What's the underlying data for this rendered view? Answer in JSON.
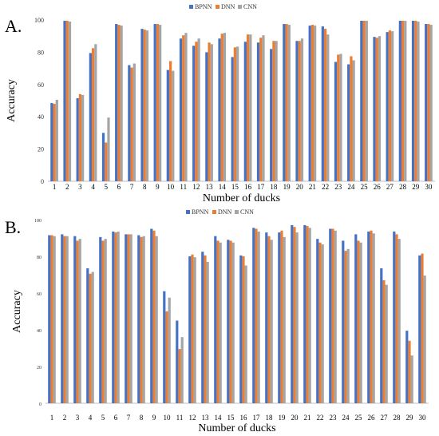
{
  "colors": {
    "BPNN": "#4472C4",
    "DNN": "#ED7D31",
    "CNN": "#A5A5A5"
  },
  "chart_data": [
    {
      "panel_label": "A.",
      "type": "bar",
      "xlabel": "Number of ducks",
      "ylabel": "Accuracy",
      "ylim": [
        0,
        100
      ],
      "yticks": [
        0,
        20,
        40,
        60,
        80,
        100
      ],
      "grid": false,
      "legend": "top-center",
      "categories": [
        "1",
        "2",
        "3",
        "4",
        "5",
        "6",
        "7",
        "8",
        "9",
        "10",
        "11",
        "12",
        "13",
        "14",
        "15",
        "16",
        "17",
        "18",
        "19",
        "20",
        "21",
        "22",
        "23",
        "24",
        "25",
        "26",
        "27",
        "28",
        "29",
        "30"
      ],
      "series": [
        {
          "name": "BPNN",
          "values": [
            48.5,
            99.5,
            51.5,
            79.5,
            30,
            97.5,
            72,
            94.5,
            97.5,
            69,
            88.5,
            84,
            80,
            88.5,
            77,
            86.5,
            86,
            82,
            97.5,
            87,
            96.5,
            96,
            74,
            72.5,
            99.5,
            89.5,
            92.5,
            99.5,
            99.5,
            97.5
          ]
        },
        {
          "name": "DNN",
          "values": [
            48,
            99.5,
            54,
            82.5,
            24,
            97,
            70.5,
            94,
            97.5,
            74.5,
            90.5,
            86.5,
            86,
            91.5,
            83,
            91,
            89,
            87,
            97.5,
            87,
            97,
            94.5,
            78.5,
            77.5,
            99.5,
            89,
            93.5,
            99.5,
            99.5,
            97.5
          ]
        },
        {
          "name": "CNN",
          "values": [
            50.5,
            99,
            53.5,
            85,
            39.5,
            96.5,
            73,
            93.5,
            97,
            68.5,
            92,
            88.5,
            85,
            92,
            83.5,
            91,
            90.5,
            87,
            97,
            88.5,
            96.5,
            91,
            79,
            75,
            99.5,
            90,
            93,
            99.5,
            99,
            97
          ]
        }
      ]
    },
    {
      "panel_label": "B.",
      "type": "bar",
      "xlabel": "Number of ducks",
      "ylabel": "Accuracy",
      "ylim": [
        0,
        100
      ],
      "yticks": [
        0,
        20,
        40,
        60,
        80,
        100
      ],
      "grid": false,
      "legend": "top-center",
      "categories": [
        "1",
        "2",
        "3",
        "4",
        "5",
        "6",
        "7",
        "8",
        "9",
        "10",
        "11",
        "12",
        "13",
        "14",
        "15",
        "16",
        "17",
        "18",
        "19",
        "20",
        "21",
        "22",
        "23",
        "24",
        "25",
        "26",
        "27",
        "28",
        "29",
        "30"
      ],
      "series": [
        {
          "name": "BPNN",
          "values": [
            91.5,
            92,
            91,
            73.5,
            90.5,
            93.5,
            92,
            91.5,
            95,
            61,
            45,
            80,
            82.5,
            91,
            89,
            80.5,
            95.5,
            93,
            93,
            97,
            97,
            89.5,
            95,
            88.5,
            92,
            93.5,
            73.5,
            93.5,
            39.5,
            80.5
          ]
        },
        {
          "name": "DNN",
          "values": [
            91.5,
            91,
            88.5,
            70.5,
            88.5,
            93,
            92,
            90.5,
            94,
            50,
            29.5,
            81,
            80.5,
            88.5,
            88.5,
            80,
            95,
            91,
            94,
            96,
            96.5,
            87.5,
            95,
            83,
            88.5,
            94,
            67,
            92,
            34,
            81.5
          ]
        },
        {
          "name": "CNN",
          "values": [
            91,
            91,
            89.5,
            71.5,
            89.5,
            93.5,
            92,
            91,
            91,
            57.5,
            36,
            79.5,
            77,
            87.5,
            87.5,
            75,
            93.5,
            89,
            90.5,
            93,
            95.5,
            86.5,
            94,
            84,
            87.5,
            92.5,
            64.5,
            89.5,
            26,
            69.5
          ]
        }
      ]
    }
  ]
}
